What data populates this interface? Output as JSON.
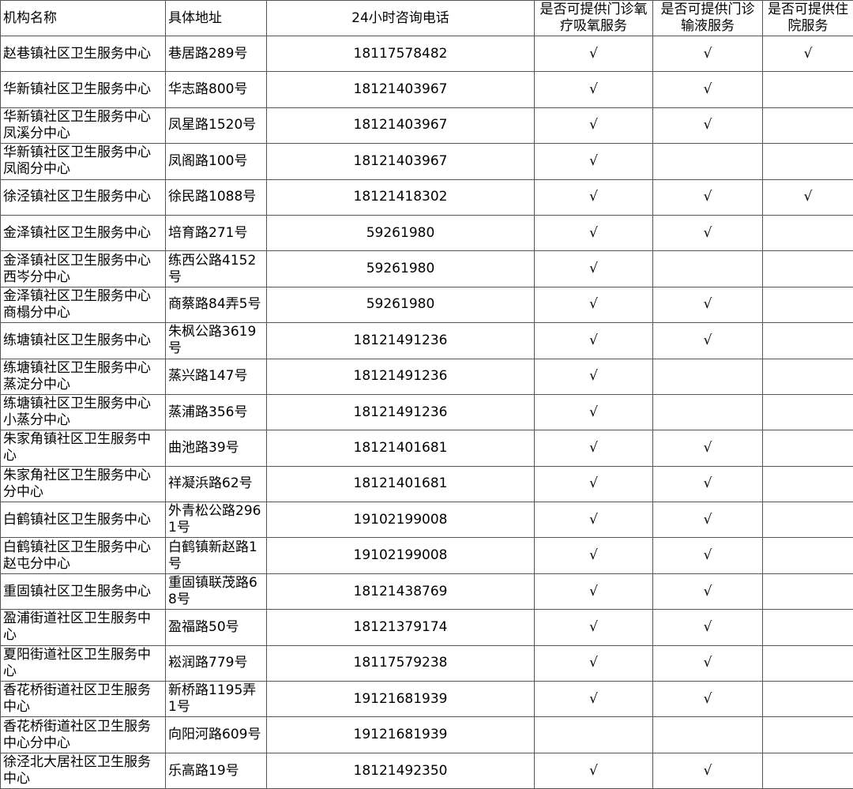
{
  "table": {
    "header": [
      "机构名称",
      "具体地址",
      "24小时咨询电话",
      "是否可提供门诊氧疗吸氧服务",
      "是否可提供门诊输液服务",
      "是否可提供住院服务"
    ],
    "rows": [
      [
        "赵巷镇社区卫生服务中心",
        "巷居路289号",
        "18117578482",
        "√",
        "√",
        "√"
      ],
      [
        "华新镇社区卫生服务中心",
        "华志路800号",
        "18121403967",
        "√",
        "√",
        null
      ],
      [
        "华新镇社区卫生服务中心凤溪分中心",
        "凤星路1520号",
        "18121403967",
        "√",
        "√",
        null
      ],
      [
        "华新镇社区卫生服务中心凤阁分中心",
        "凤阁路100号",
        "18121403967",
        "√",
        null,
        null
      ],
      [
        "徐泾镇社区卫生服务中心",
        "徐民路1088号",
        "18121418302",
        "√",
        "√",
        "√"
      ],
      [
        "金泽镇社区卫生服务中心",
        "培育路271号",
        "59261980",
        "√",
        "√",
        null
      ],
      [
        "金泽镇社区卫生服务中心西岑分中心",
        "练西公路4152号",
        "59261980",
        "√",
        null,
        null
      ],
      [
        "金泽镇社区卫生服务中心商榻分中心",
        "商蔡路84弄5号",
        "59261980",
        "√",
        "√",
        null
      ],
      [
        "练塘镇社区卫生服务中心",
        "朱枫公路3619号",
        "18121491236",
        "√",
        "√",
        null
      ],
      [
        "练塘镇社区卫生服务中心蒸淀分中心",
        "蒸兴路147号",
        "18121491236",
        "√",
        null,
        null
      ],
      [
        "练塘镇社区卫生服务中心小蒸分中心",
        "蒸浦路356号",
        "18121491236",
        "√",
        null,
        null
      ],
      [
        "朱家角镇社区卫生服务中心",
        "曲池路39号",
        "18121401681",
        "√",
        "√",
        null
      ],
      [
        "朱家角社区卫生服务中心分中心",
        "祥凝浜路62号",
        "18121401681",
        "√",
        "√",
        null
      ],
      [
        "白鹤镇社区卫生服务中心",
        "外青松公路2961号",
        "19102199008",
        "√",
        "√",
        null
      ],
      [
        "白鹤镇社区卫生服务中心赵屯分中心",
        "白鹤镇新赵路1号",
        "19102199008",
        "√",
        "√",
        null
      ],
      [
        "重固镇社区卫生服务中心",
        "重固镇联茂路68号",
        "18121438769",
        "√",
        "√",
        null
      ],
      [
        "盈浦街道社区卫生服务中心",
        "盈福路50号",
        "18121379174",
        "√",
        "√",
        null
      ],
      [
        "夏阳街道社区卫生服务中心",
        "崧润路779号",
        "18117579238",
        "√",
        "√",
        null
      ],
      [
        "香花桥街道社区卫生服务中心",
        "新桥路1195弄1号",
        "19121681939",
        "√",
        "√",
        null
      ],
      [
        "香花桥街道社区卫生服务中心分中心",
        "向阳河路609号",
        "19121681939",
        null,
        null,
        null
      ],
      [
        "徐泾北大居社区卫生服务中心",
        "乐高路19号",
        "18121492350",
        "√",
        "√",
        null
      ]
    ]
  }
}
